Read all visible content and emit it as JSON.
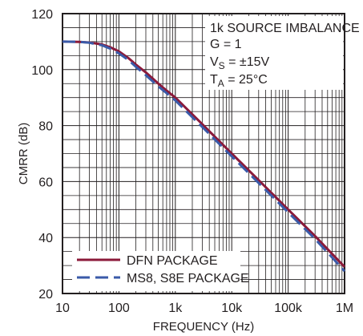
{
  "chart_data": {
    "type": "line",
    "xlabel": "FREQUENCY (Hz)",
    "ylabel": "CMRR (dB)",
    "xscale": "log",
    "xlim": [
      10,
      1000000
    ],
    "ylim": [
      20,
      120
    ],
    "grid": true,
    "x_ticks": [
      10,
      100,
      1000,
      10000,
      100000,
      1000000
    ],
    "x_tick_labels": [
      "10",
      "100",
      "1k",
      "10k",
      "100k",
      "1M"
    ],
    "y_ticks": [
      20,
      40,
      60,
      80,
      100,
      120
    ],
    "y_tick_labels": [
      "20",
      "40",
      "60",
      "80",
      "100",
      "120"
    ],
    "annotations": {
      "line1": "1k SOURCE IMBALANCE",
      "line2": "G = 1",
      "vs_main": "V",
      "vs_sub": "S",
      "vs_rest": " = ±15V",
      "ta_main": "T",
      "ta_sub": "A",
      "ta_rest": " = 25°C"
    },
    "legend_position": "bottom-left",
    "series": [
      {
        "name": "DFN PACKAGE",
        "color": "#8b1a3a",
        "dash": "solid",
        "x": [
          10,
          20,
          30,
          50,
          70,
          100,
          150,
          200,
          300,
          500,
          700,
          1000,
          3000,
          10000,
          30000,
          100000,
          300000,
          1000000
        ],
        "y": [
          110,
          109.9,
          109.7,
          109,
          108,
          106.5,
          104,
          101.8,
          99,
          95,
          92.5,
          90,
          80.5,
          70,
          60.5,
          50,
          40.5,
          29.5
        ]
      },
      {
        "name": "MS8, S8E PACKAGE",
        "color": "#3a5aa8",
        "dash": "dashed",
        "x": [
          10,
          20,
          30,
          50,
          70,
          100,
          150,
          200,
          300,
          500,
          700,
          1000,
          3000,
          10000,
          30000,
          100000,
          300000,
          1000000
        ],
        "y": [
          110,
          109.9,
          109.6,
          108.7,
          107.5,
          105.8,
          103.3,
          101,
          98,
          94,
          91.6,
          89,
          79.5,
          69,
          59.5,
          49,
          39.5,
          28
        ]
      }
    ]
  }
}
